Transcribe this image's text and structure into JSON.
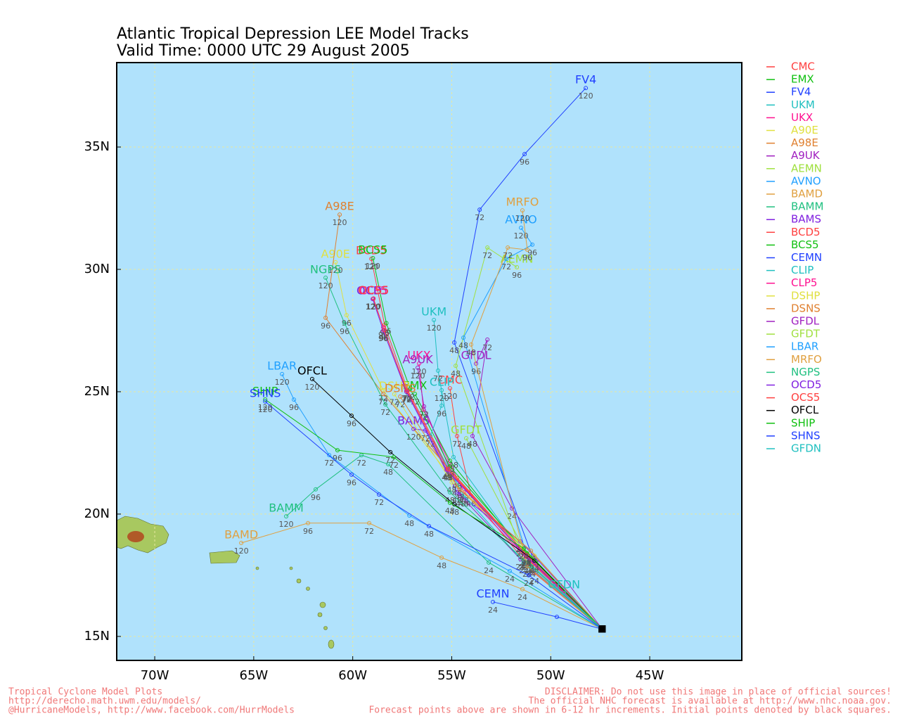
{
  "chart_data": {
    "type": "line",
    "title": "Atlantic Tropical Depression LEE Model Tracks",
    "subtitle": "Valid Time: 0000 UTC 29 August 2005",
    "xlim": [
      -71.92,
      -40.35
    ],
    "ylim": [
      14.02,
      38.45
    ],
    "xticks": [
      {
        "value": -70,
        "label": "70W"
      },
      {
        "value": -65,
        "label": "65W"
      },
      {
        "value": -60,
        "label": "60W"
      },
      {
        "value": -55,
        "label": "55W"
      },
      {
        "value": -50,
        "label": "50W"
      },
      {
        "value": -45,
        "label": "45W"
      }
    ],
    "yticks": [
      {
        "value": 15,
        "label": "15N"
      },
      {
        "value": 20,
        "label": "20N"
      },
      {
        "value": 25,
        "label": "25N"
      },
      {
        "value": 30,
        "label": "30N"
      },
      {
        "value": 35,
        "label": "35N"
      }
    ],
    "grid": true,
    "series": [
      {
        "name": "CMC",
        "color": "#ff4040",
        "x": [
          -47.4,
          -50.82,
          -54.02,
          -54.73,
          -55.09
        ],
        "y": [
          15.3,
          17.59,
          20.75,
          23.19,
          25.14
        ],
        "point_labels": [
          null,
          "24",
          "48",
          "72",
          "120"
        ]
      },
      {
        "name": "EMX",
        "color": "#10c010",
        "x": [
          -47.4,
          -51.25,
          -55.09,
          -56.86
        ],
        "y": [
          15.3,
          18.3,
          22.18,
          24.91
        ],
        "point_labels": [
          null,
          "24",
          "48",
          "72"
        ]
      },
      {
        "name": "FV4",
        "color": "#2040ff",
        "x": [
          -47.4,
          -50.82,
          -54.87,
          -53.59,
          -51.32,
          -48.23
        ],
        "y": [
          15.3,
          18.02,
          27.01,
          32.44,
          34.71,
          37.41
        ],
        "point_labels": [
          null,
          "24",
          "48",
          "72",
          "96",
          "120"
        ]
      },
      {
        "name": "UKM",
        "color": "#20c0c0",
        "x": [
          -47.4,
          -51.18,
          -54.91,
          -55.69,
          -55.9
        ],
        "y": [
          15.3,
          18.16,
          22.33,
          25.86,
          27.93
        ],
        "point_labels": [
          null,
          "24",
          "48",
          "72",
          "120"
        ]
      },
      {
        "name": "UKX",
        "color": "#ff1090",
        "x": [
          -47.4,
          -51.36,
          -54.38,
          -56.43,
          -56.65
        ],
        "y": [
          15.3,
          18.3,
          20.89,
          24.28,
          26.15
        ],
        "point_labels": [
          null,
          "24",
          "48",
          "72",
          "120"
        ]
      },
      {
        "name": "A90E",
        "color": "#e0e040",
        "x": [
          -47.4,
          -50.82,
          -54.73,
          -58.46,
          -60.31,
          -60.87
        ],
        "y": [
          15.3,
          18.3,
          21.18,
          25.06,
          28.13,
          30.29
        ],
        "point_labels": [
          null,
          "24",
          "48",
          "72",
          "96",
          "120"
        ]
      },
      {
        "name": "A98E",
        "color": "#e08030",
        "x": [
          -47.4,
          -51.0,
          -54.73,
          -58.46,
          -61.37,
          -60.66
        ],
        "y": [
          15.3,
          18.02,
          21.47,
          24.91,
          28.02,
          32.24
        ],
        "point_labels": [
          null,
          "24",
          "48",
          "72",
          "96",
          "120"
        ]
      },
      {
        "name": "A9UK",
        "color": "#a020c0",
        "x": [
          -47.4,
          -51.53,
          -54.55,
          -56.4,
          -56.72
        ],
        "y": [
          15.3,
          18.16,
          20.75,
          24.4,
          25.98
        ],
        "point_labels": [
          null,
          "24",
          "48",
          "72",
          "120"
        ]
      },
      {
        "name": "AEMN",
        "color": "#a0e040",
        "x": [
          -47.4,
          -51.36,
          -54.8,
          -53.2,
          -51.71
        ],
        "y": [
          15.3,
          18.16,
          26.06,
          30.89,
          30.09
        ],
        "point_labels": [
          null,
          "24",
          "48",
          "72",
          "96"
        ]
      },
      {
        "name": "AVNO",
        "color": "#20a0ff",
        "x": [
          -47.4,
          -51.11,
          -54.41,
          -52.24,
          -50.93,
          -51.5
        ],
        "y": [
          15.3,
          18.02,
          27.21,
          30.43,
          31.01,
          31.7
        ],
        "point_labels": [
          null,
          "24",
          "48",
          "72",
          "96",
          "120"
        ]
      },
      {
        "name": "BAMD",
        "color": "#e0a040",
        "x": [
          -47.4,
          -51.43,
          -55.51,
          -59.17,
          -62.26,
          -65.63
        ],
        "y": [
          15.3,
          16.93,
          18.22,
          19.63,
          19.63,
          18.82
        ],
        "point_labels": [
          null,
          "24",
          "48",
          "72",
          "96",
          "120"
        ]
      },
      {
        "name": "BAMM",
        "color": "#20c080",
        "x": [
          -47.4,
          -53.13,
          -58.21,
          -59.56,
          -61.87,
          -63.36
        ],
        "y": [
          15.3,
          18.02,
          22.04,
          22.41,
          21.01,
          19.91
        ],
        "point_labels": [
          null,
          "24",
          "48",
          "72",
          "96",
          "120"
        ]
      },
      {
        "name": "BAMS",
        "color": "#8020e0",
        "x": [
          -47.4,
          -51.53,
          -54.73,
          -56.33,
          -56.93
        ],
        "y": [
          15.3,
          18.88,
          20.89,
          23.42,
          23.48
        ],
        "point_labels": [
          null,
          "24",
          "48",
          "72",
          "120"
        ]
      },
      {
        "name": "BCD5",
        "color": "#ff4040",
        "x": [
          -47.4,
          -51.25,
          -55.19,
          -57.22,
          -58.39,
          -59.06
        ],
        "y": [
          15.3,
          18.36,
          21.9,
          25.06,
          27.73,
          30.43
        ],
        "point_labels": [
          null,
          "24",
          "48",
          "72",
          "96",
          "120"
        ]
      },
      {
        "name": "BCS5",
        "color": "#10c010",
        "x": [
          -47.4,
          -51.2,
          -55.1,
          -57.1,
          -58.3,
          -58.98
        ],
        "y": [
          15.3,
          18.4,
          21.95,
          25.12,
          27.8,
          30.46
        ],
        "point_labels": [
          null,
          "24",
          "48",
          "72",
          "96",
          "120"
        ]
      },
      {
        "name": "CEMN",
        "color": "#2040ff",
        "x": [
          -47.4,
          -49.69,
          -52.92
        ],
        "y": [
          15.3,
          15.8,
          16.41
        ],
        "point_labels": [
          null,
          null,
          "24"
        ]
      },
      {
        "name": "CLIP",
        "color": "#20c0c0",
        "x": [
          -47.4,
          -51.36,
          -54.38,
          -56.08,
          -55.51,
          -55.51
        ],
        "y": [
          15.3,
          18.02,
          20.75,
          23.19,
          24.43,
          25.06
        ],
        "point_labels": [
          null,
          "24",
          "48",
          "72",
          "96",
          "120"
        ]
      },
      {
        "name": "CLP5",
        "color": "#ff1090",
        "x": [
          -47.4,
          -51.25,
          -55.19,
          -57.29,
          -58.46,
          -58.96
        ],
        "y": [
          15.3,
          18.25,
          21.81,
          25.06,
          27.64,
          28.79
        ],
        "point_labels": [
          null,
          "24",
          "48",
          "72",
          "96",
          "120"
        ]
      },
      {
        "name": "DSHP",
        "color": "#e0e040",
        "x": [
          -47.4,
          -51.5,
          -55.0,
          -57.9
        ],
        "y": [
          15.3,
          18.7,
          21.3,
          24.9
        ],
        "point_labels": [
          null,
          "24",
          "48",
          "72"
        ]
      },
      {
        "name": "DSNS",
        "color": "#e08030",
        "x": [
          -47.4,
          -51.0,
          -54.6,
          -57.6
        ],
        "y": [
          15.3,
          18.5,
          21.0,
          24.8
        ],
        "point_labels": [
          null,
          "24",
          "48",
          "72"
        ]
      },
      {
        "name": "GFDL",
        "color": "#a020c0",
        "x": [
          -47.4,
          -51.96,
          -53.95,
          -53.2,
          -53.77
        ],
        "y": [
          15.3,
          20.23,
          23.19,
          27.13,
          26.15
        ],
        "point_labels": [
          null,
          "24",
          "48",
          "72",
          "96"
        ]
      },
      {
        "name": "GFDT",
        "color": "#a0e040",
        "x": [
          -47.4,
          -51.36,
          -54.27
        ],
        "y": [
          15.3,
          18.59,
          23.1
        ],
        "point_labels": [
          null,
          "24",
          "48"
        ]
      },
      {
        "name": "LBAR",
        "color": "#20a0ff",
        "x": [
          -47.4,
          -52.07,
          -57.14,
          -61.19,
          -62.97,
          -63.57
        ],
        "y": [
          15.3,
          17.67,
          19.94,
          22.41,
          24.68,
          25.72
        ],
        "point_labels": [
          null,
          "24",
          "48",
          "72",
          "96",
          "120"
        ]
      },
      {
        "name": "MRFO",
        "color": "#e0a040",
        "x": [
          -47.4,
          -51.18,
          -54.02,
          -52.17,
          -51.18,
          -51.43
        ],
        "y": [
          15.3,
          17.87,
          26.93,
          30.89,
          30.8,
          32.41
        ],
        "point_labels": [
          null,
          "24",
          "48",
          "72",
          "96",
          "120"
        ]
      },
      {
        "name": "NGPS",
        "color": "#20c080",
        "x": [
          -47.4,
          -51.0,
          -55.09,
          -58.35,
          -60.41,
          -61.37
        ],
        "y": [
          15.3,
          17.87,
          20.89,
          24.48,
          27.79,
          29.66
        ],
        "point_labels": [
          null,
          "24",
          "48",
          "72",
          "96",
          "120"
        ]
      },
      {
        "name": "OCD5",
        "color": "#8020e0",
        "x": [
          -47.4,
          -51.25,
          -55.26,
          -57.29,
          -58.46,
          -58.99
        ],
        "y": [
          15.3,
          18.3,
          21.81,
          25.0,
          27.5,
          28.79
        ],
        "point_labels": [
          null,
          "24",
          "48",
          "72",
          "96",
          "120"
        ]
      },
      {
        "name": "OCS5",
        "color": "#ff4040",
        "x": [
          -47.4,
          -51.2,
          -55.2,
          -57.25,
          -58.42,
          -58.95
        ],
        "y": [
          15.3,
          18.32,
          21.83,
          25.02,
          27.52,
          28.81
        ],
        "point_labels": [
          null,
          "24",
          "48",
          "72",
          "96",
          "120"
        ]
      },
      {
        "name": "OFCL",
        "color": "#000000",
        "x": [
          -47.4,
          -50.82,
          -54.87,
          -58.1,
          -60.06,
          -62.05
        ],
        "y": [
          15.3,
          18.1,
          20.4,
          22.53,
          24.02,
          25.52
        ],
        "point_labels": [
          null,
          "24",
          "48",
          "72",
          "96",
          "120"
        ]
      },
      {
        "name": "SHIP",
        "color": "#10c010",
        "x": [
          -47.4,
          -51.36,
          -55.09,
          -57.93,
          -60.77,
          -64.42
        ],
        "y": [
          15.3,
          18.59,
          20.46,
          22.33,
          22.61,
          24.68
        ],
        "point_labels": [
          null,
          "24",
          "48",
          "72",
          "96",
          "120"
        ]
      },
      {
        "name": "SHNS",
        "color": "#2040ff",
        "x": [
          -47.4,
          -51.11,
          -56.15,
          -58.67,
          -60.06,
          -64.42
        ],
        "y": [
          15.3,
          17.5,
          19.51,
          20.8,
          21.61,
          24.6
        ],
        "point_labels": [
          null,
          "24",
          "48",
          "72",
          "96",
          "120"
        ]
      },
      {
        "name": "GFDN",
        "color": "#20c0c0",
        "x": [
          -47.4,
          -49.33
        ],
        "y": [
          15.3,
          16.78
        ],
        "point_labels": [
          null,
          null
        ]
      }
    ]
  },
  "footer": {
    "left": [
      "Tropical Cyclone Model Plots",
      "http://derecho.math.uwm.edu/models/",
      "@HurricaneModels, http://www.facebook.com/HurrModels"
    ],
    "right": [
      "DISCLAIMER: Do not use this image in place of official sources!",
      "The official NHC forecast is available at http://www.nhc.noaa.gov.",
      "Forecast points above are shown in 6-12 hr increments. Initial points denoted by black squares."
    ]
  }
}
